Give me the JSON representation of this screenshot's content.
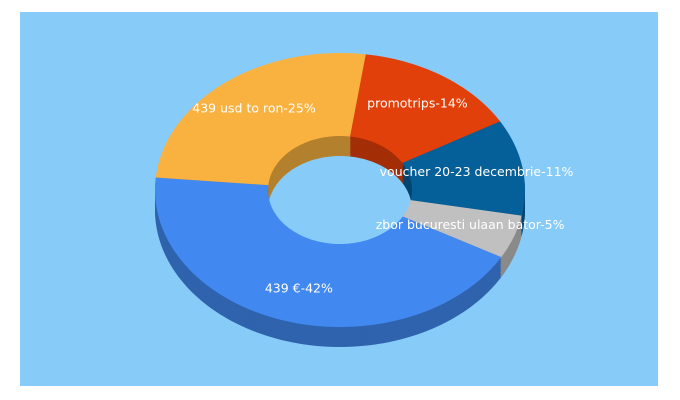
{
  "chart_data": {
    "type": "donut3d",
    "value_labels": [
      "promotrips-14%",
      "voucher 20-23 decembrie-11%",
      "zbor bucuresti ulaan bator-5%",
      "439 €-42%",
      "439 usd to ron-25%"
    ],
    "values": [
      14,
      11,
      5,
      42,
      25
    ],
    "colors": [
      "#e2400a",
      "#05609a",
      "#c0c0c0",
      "#4189f0",
      "#f9b240"
    ]
  }
}
